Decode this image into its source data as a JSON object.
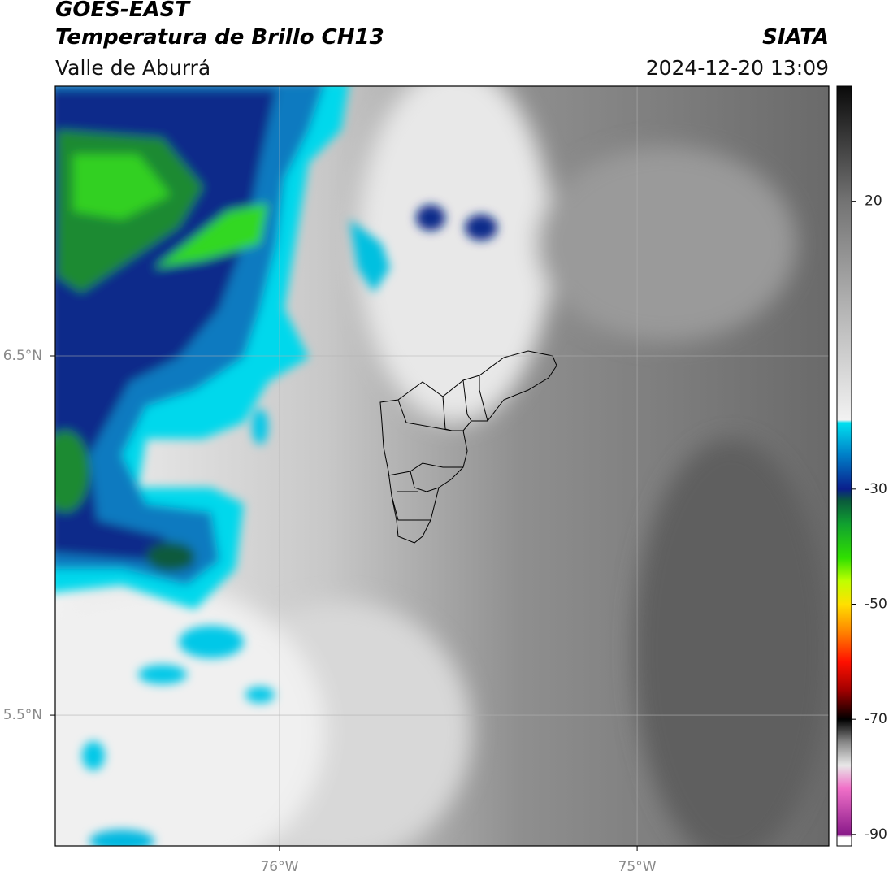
{
  "header": {
    "title": "GOES-EAST",
    "subtitle": "Temperatura de Brillo CH13",
    "region": "Valle de Aburrá",
    "source": "SIATA",
    "datetime": "2024-12-20 13:09"
  },
  "map": {
    "xlim": [
      -76.627,
      -74.464
    ],
    "ylim": [
      5.136,
      7.251
    ],
    "xticks": [
      {
        "value": -76,
        "label": "76°W"
      },
      {
        "value": -75,
        "label": "75°W"
      }
    ],
    "yticks": [
      {
        "value": 6.5,
        "label": "6.5°N"
      },
      {
        "value": 5.5,
        "label": "5.5°N"
      }
    ],
    "grid": true
  },
  "colorbar": {
    "lim": [
      -92,
      40
    ],
    "ticks": [
      20,
      -30,
      -50,
      -70,
      -90
    ],
    "colormap": [
      {
        "value": 40,
        "color": "#0a0a0a"
      },
      {
        "value": 20,
        "color": "#737373"
      },
      {
        "value": 0,
        "color": "#b8b8b8"
      },
      {
        "value": -18,
        "color": "#f2f2f2"
      },
      {
        "value": -18.5,
        "color": "#00e0f0"
      },
      {
        "value": -24,
        "color": "#0080c8"
      },
      {
        "value": -30,
        "color": "#0a1e8c"
      },
      {
        "value": -32,
        "color": "#0a5a3c"
      },
      {
        "value": -36,
        "color": "#10a030"
      },
      {
        "value": -42,
        "color": "#30e000"
      },
      {
        "value": -46,
        "color": "#c0ff00"
      },
      {
        "value": -50,
        "color": "#ffe000"
      },
      {
        "value": -55,
        "color": "#ff8000"
      },
      {
        "value": -60,
        "color": "#ff1000"
      },
      {
        "value": -65,
        "color": "#a00000"
      },
      {
        "value": -70,
        "color": "#000000"
      },
      {
        "value": -74,
        "color": "#888888"
      },
      {
        "value": -78,
        "color": "#e8e8e8"
      },
      {
        "value": -82,
        "color": "#f070c8"
      },
      {
        "value": -90,
        "color": "#8a1a8a"
      },
      {
        "value": -90.5,
        "color": "#ffffff"
      },
      {
        "value": -92,
        "color": "#ffffff"
      }
    ]
  }
}
